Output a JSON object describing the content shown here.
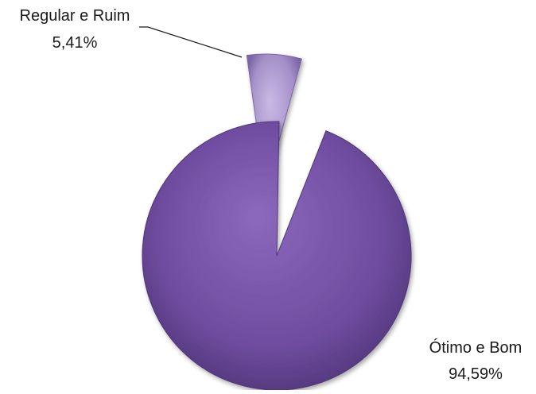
{
  "chart_data": {
    "type": "pie",
    "title": "",
    "exploded": true,
    "effect": "3d-bevel-gradient",
    "slices": [
      {
        "label": "Regular e Ruim",
        "value": 5.41,
        "value_label": "5,41%",
        "color": "#a48fc8",
        "color_dark": "#7b65a6",
        "color_light": "#c9b9e4"
      },
      {
        "label": "Ótimo e Bom",
        "value": 94.59,
        "value_label": "94,59%",
        "color": "#6f4c9f",
        "color_dark": "#4f3578",
        "color_light": "#8c69bd"
      }
    ],
    "label_position": "outside",
    "legend": "none"
  }
}
